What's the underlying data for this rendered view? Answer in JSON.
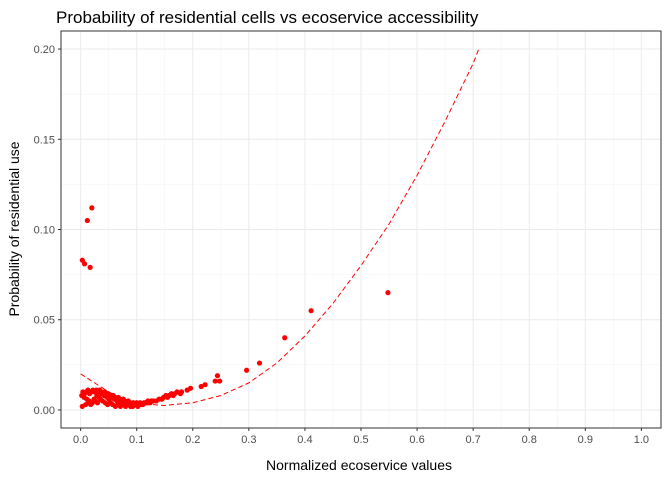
{
  "chart_data": {
    "type": "scatter",
    "title": "Probability of residential cells vs ecoservice accessibility",
    "xlabel": "Normalized ecoservice values",
    "ylabel": "Probability of residential use",
    "xlim": [
      -0.035,
      1.035
    ],
    "ylim": [
      -0.01,
      0.21
    ],
    "x_ticks": [
      0.0,
      0.1,
      0.2,
      0.3,
      0.4,
      0.5,
      0.6,
      0.7,
      0.8,
      0.9,
      1.0
    ],
    "x_tick_labels": [
      "0.0",
      "0.1",
      "0.2",
      "0.3",
      "0.4",
      "0.5",
      "0.6",
      "0.7",
      "0.8",
      "0.9",
      "1.0"
    ],
    "y_ticks": [
      0.0,
      0.05,
      0.1,
      0.15,
      0.2
    ],
    "y_tick_labels": [
      "0.00",
      "0.05",
      "0.10",
      "0.15",
      "0.20"
    ],
    "grid": true,
    "legend": "none",
    "point_color": "#ff0000",
    "fit_line_color": "#ff0000",
    "fit_line_style": "dashed",
    "series": [
      {
        "kind": "points",
        "x": [
          0.003,
          0.007,
          0.017,
          0.012,
          0.02,
          0.548,
          0.411,
          0.364,
          0.319,
          0.296,
          0.248,
          0.244,
          0.24,
          0.222,
          0.215,
          0.196,
          0.19,
          0.18,
          0.178,
          0.172,
          0.168,
          0.165,
          0.162,
          0.158,
          0.155,
          0.152,
          0.148,
          0.145,
          0.14,
          0.135,
          0.13,
          0.127,
          0.124,
          0.12,
          0.117,
          0.113,
          0.11,
          0.106,
          0.103,
          0.1,
          0.097,
          0.094,
          0.091,
          0.088,
          0.085,
          0.082,
          0.079,
          0.076,
          0.073,
          0.07,
          0.067,
          0.064,
          0.061,
          0.058,
          0.055,
          0.052,
          0.049,
          0.046,
          0.043,
          0.04,
          0.037,
          0.034,
          0.031,
          0.028,
          0.025,
          0.022,
          0.019,
          0.016,
          0.013,
          0.01,
          0.007,
          0.004,
          0.002,
          0.006,
          0.011,
          0.015,
          0.021,
          0.026,
          0.03,
          0.035,
          0.039,
          0.044,
          0.048,
          0.053,
          0.057,
          0.062,
          0.066,
          0.071,
          0.075,
          0.08,
          0.084,
          0.089,
          0.093,
          0.098,
          0.102,
          0.107,
          0.111,
          0.116,
          0.121,
          0.126,
          0.003,
          0.009,
          0.014,
          0.018,
          0.024,
          0.029,
          0.033,
          0.038,
          0.042,
          0.047,
          0.051,
          0.056,
          0.06,
          0.065,
          0.069,
          0.074,
          0.078,
          0.083,
          0.087,
          0.092
        ],
        "y": [
          0.083,
          0.081,
          0.079,
          0.105,
          0.112,
          0.065,
          0.055,
          0.04,
          0.026,
          0.022,
          0.016,
          0.019,
          0.016,
          0.014,
          0.013,
          0.012,
          0.011,
          0.01,
          0.009,
          0.01,
          0.009,
          0.008,
          0.009,
          0.008,
          0.007,
          0.008,
          0.007,
          0.006,
          0.006,
          0.005,
          0.005,
          0.005,
          0.004,
          0.005,
          0.004,
          0.004,
          0.003,
          0.004,
          0.003,
          0.004,
          0.003,
          0.004,
          0.003,
          0.004,
          0.005,
          0.004,
          0.005,
          0.006,
          0.005,
          0.006,
          0.007,
          0.006,
          0.007,
          0.008,
          0.007,
          0.008,
          0.009,
          0.008,
          0.01,
          0.009,
          0.01,
          0.011,
          0.01,
          0.011,
          0.01,
          0.011,
          0.01,
          0.009,
          0.011,
          0.01,
          0.009,
          0.01,
          0.008,
          0.007,
          0.006,
          0.005,
          0.004,
          0.005,
          0.004,
          0.006,
          0.005,
          0.004,
          0.003,
          0.004,
          0.003,
          0.002,
          0.003,
          0.002,
          0.003,
          0.002,
          0.003,
          0.002,
          0.002,
          0.003,
          0.002,
          0.003,
          0.003,
          0.004,
          0.004,
          0.005,
          0.002,
          0.003,
          0.004,
          0.003,
          0.006,
          0.008,
          0.007,
          0.009,
          0.008,
          0.007,
          0.006,
          0.007,
          0.006,
          0.005,
          0.004,
          0.005,
          0.004,
          0.003,
          0.004,
          0.003
        ]
      },
      {
        "kind": "fit_line",
        "x": [
          0.0,
          0.025,
          0.05,
          0.075,
          0.1,
          0.125,
          0.15,
          0.2,
          0.25,
          0.3,
          0.35,
          0.4,
          0.45,
          0.5,
          0.55,
          0.6,
          0.65,
          0.7,
          0.71
        ],
        "y": [
          0.02,
          0.015,
          0.01,
          0.006,
          0.004,
          0.003,
          0.0025,
          0.004,
          0.008,
          0.015,
          0.026,
          0.041,
          0.059,
          0.08,
          0.103,
          0.13,
          0.16,
          0.192,
          0.2
        ]
      }
    ]
  }
}
